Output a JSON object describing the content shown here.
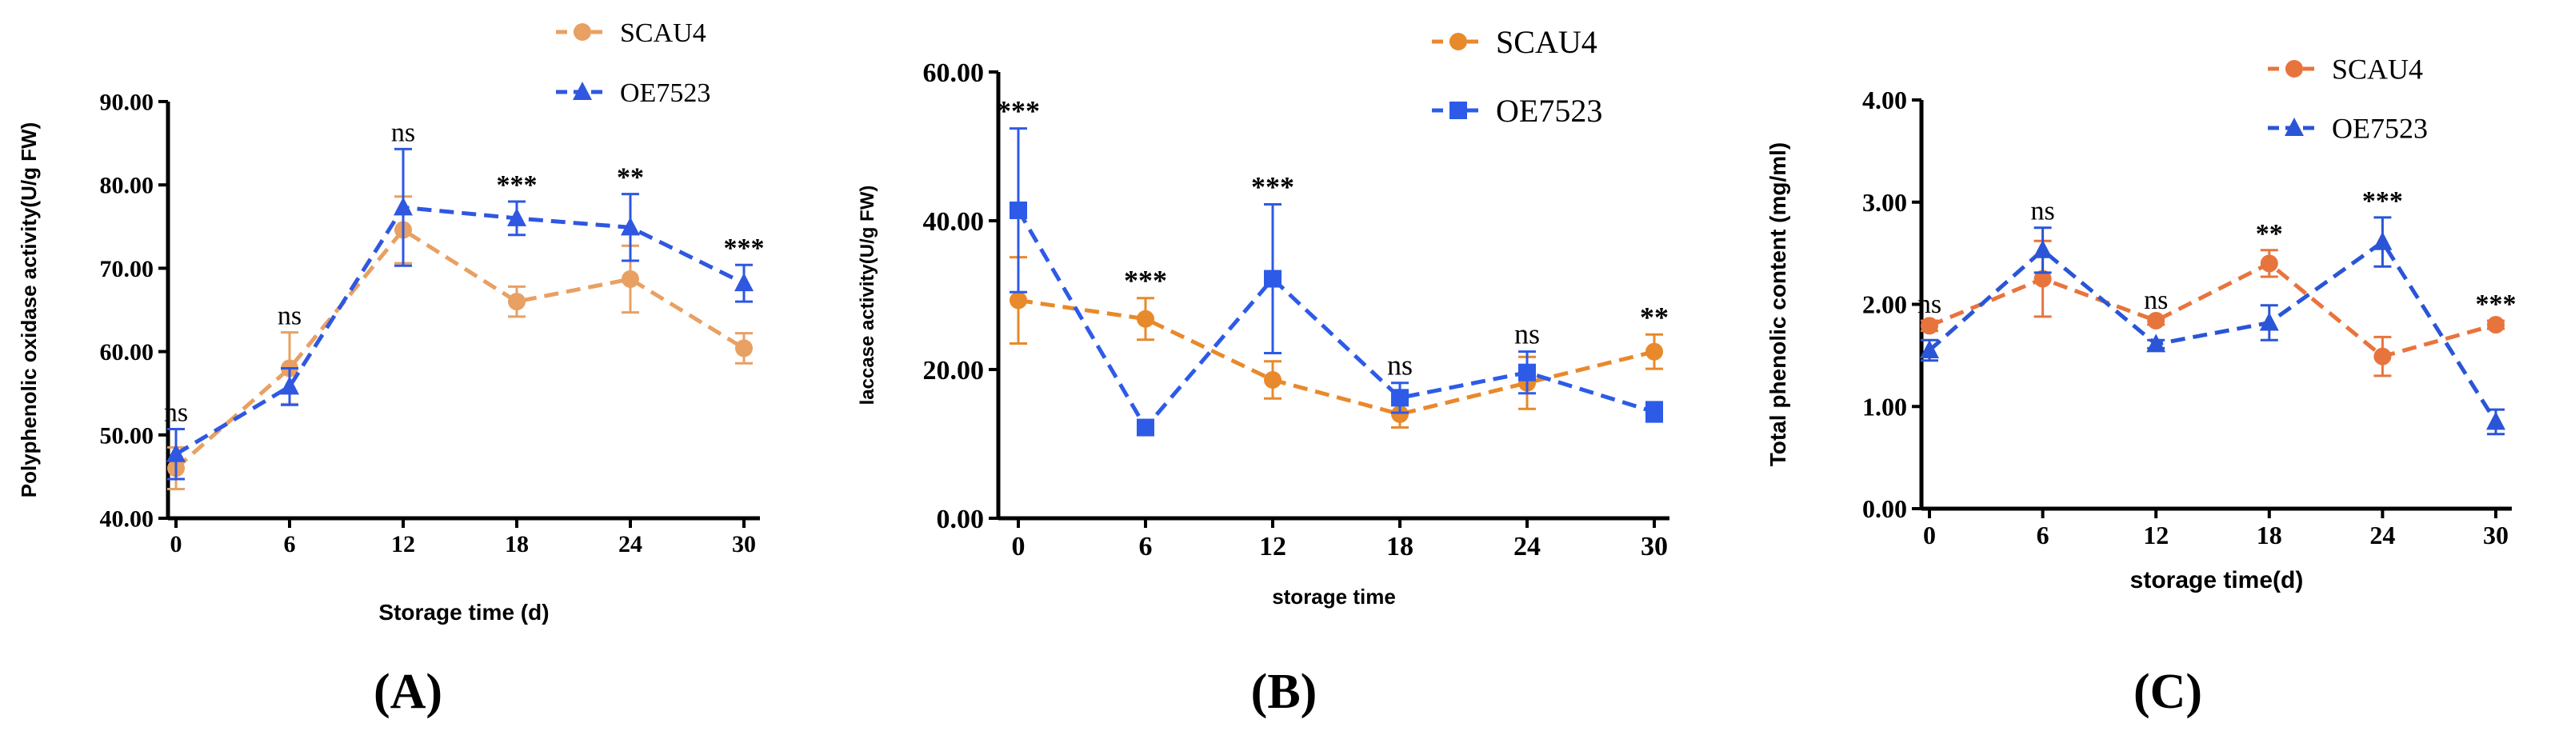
{
  "chart_data": [
    {
      "panel_label": "(A)",
      "type": "line",
      "xlabel": "Storage time (d)",
      "ylabel": "Polyphenolic oxidase activity(U/g FW)",
      "ylim": [
        40,
        90
      ],
      "yticks": [
        "40.00",
        "50.00",
        "60.00",
        "70.00",
        "80.00",
        "90.00"
      ],
      "x": [
        0,
        6,
        12,
        18,
        24,
        30
      ],
      "xticks": [
        "0",
        "6",
        "12",
        "18",
        "24",
        "30"
      ],
      "grid": false,
      "legend_position": "top-right",
      "series": [
        {
          "name": "SCAU4",
          "color": "#E8A063",
          "marker": "circle",
          "line": "dashed",
          "values": [
            46.0,
            58.0,
            74.6,
            66.0,
            68.7,
            60.4
          ],
          "errors": [
            2.5,
            4.3,
            4.0,
            1.8,
            4.0,
            1.8
          ]
        },
        {
          "name": "OE7523",
          "color": "#2F57E0",
          "marker": "triangle",
          "line": "dashed",
          "values": [
            47.7,
            55.8,
            77.3,
            76.0,
            74.9,
            68.2
          ],
          "errors": [
            3.0,
            2.2,
            7.0,
            2.0,
            4.0,
            2.2
          ]
        }
      ],
      "annotations": [
        "ns",
        "ns",
        "ns",
        "***",
        "**",
        "***"
      ]
    },
    {
      "panel_label": "(B)",
      "type": "line",
      "xlabel": "storage time",
      "ylabel": "laccase activity(U/g FW)",
      "ylim": [
        0,
        60
      ],
      "yticks": [
        "0.00",
        "20.00",
        "40.00",
        "60.00"
      ],
      "x": [
        0,
        6,
        12,
        18,
        24,
        30
      ],
      "xticks": [
        "0",
        "6",
        "12",
        "18",
        "24",
        "30"
      ],
      "grid": false,
      "legend_position": "top-right",
      "series": [
        {
          "name": "SCAU4",
          "color": "#E8892B",
          "marker": "circle",
          "line": "dashed",
          "values": [
            29.3,
            26.8,
            18.6,
            14.0,
            18.2,
            22.4
          ],
          "errors": [
            5.8,
            2.8,
            2.5,
            1.8,
            3.5,
            2.3
          ]
        },
        {
          "name": "OE7523",
          "color": "#2D5BE8",
          "marker": "square",
          "line": "dashed",
          "values": [
            41.4,
            12.2,
            32.2,
            16.2,
            19.6,
            14.3
          ],
          "errors": [
            11.0,
            0.6,
            10.0,
            2.0,
            2.8,
            1.3
          ]
        }
      ],
      "annotations": [
        "***",
        "***",
        "***",
        "ns",
        "ns",
        "**"
      ]
    },
    {
      "panel_label": "(C)",
      "type": "line",
      "xlabel": "storage time(d)",
      "ylabel": "Total phenolic content   (mg/ml)",
      "ylim": [
        0,
        4
      ],
      "yticks": [
        "0.00",
        "1.00",
        "2.00",
        "3.00",
        "4.00"
      ],
      "x": [
        0,
        6,
        12,
        18,
        24,
        30
      ],
      "xticks": [
        "0",
        "6",
        "12",
        "18",
        "24",
        "30"
      ],
      "grid": false,
      "legend_position": "top-right",
      "series": [
        {
          "name": "SCAU4",
          "color": "#E8743D",
          "marker": "circle",
          "line": "dashed",
          "values": [
            1.79,
            2.25,
            1.84,
            2.4,
            1.49,
            1.8
          ],
          "errors": [
            0.05,
            0.37,
            0.04,
            0.13,
            0.19,
            0.04
          ]
        },
        {
          "name": "OE7523",
          "color": "#2A55D6",
          "marker": "triangle",
          "line": "dashed",
          "values": [
            1.55,
            2.53,
            1.61,
            1.82,
            2.61,
            0.85
          ],
          "errors": [
            0.1,
            0.22,
            0.04,
            0.17,
            0.24,
            0.12
          ]
        }
      ],
      "annotations": [
        "ns",
        "ns",
        "ns",
        "**",
        "***",
        "***"
      ]
    }
  ]
}
